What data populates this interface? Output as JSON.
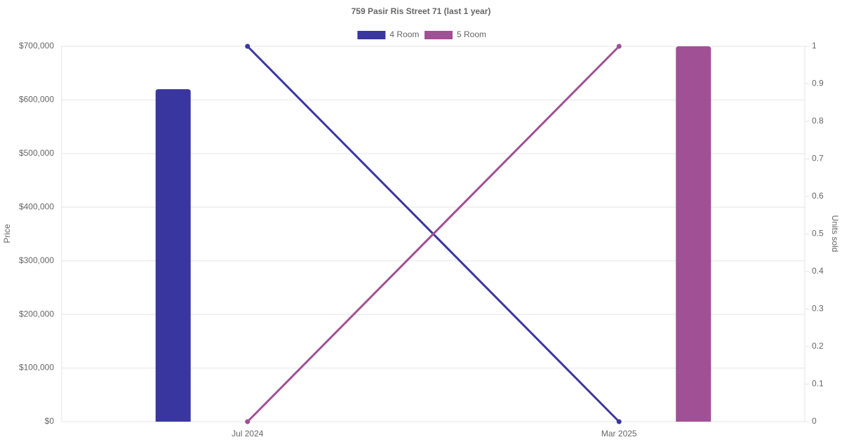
{
  "chart_data": {
    "type": "bar-line",
    "title": "759 Pasir Ris Street 71 (last 1 year)",
    "categories": [
      "Jul 2024",
      "Mar 2025"
    ],
    "y_label": "Price",
    "y2_label": "Units sold",
    "series": [
      {
        "name": "4 Room",
        "color": "#3a36a0",
        "values": [
          620000,
          null
        ],
        "units": [
          1,
          0
        ]
      },
      {
        "name": "5 Room",
        "color": "#a05095",
        "values": [
          null,
          700000
        ],
        "units": [
          0,
          1
        ]
      }
    ],
    "ylim": [
      0,
      700000
    ],
    "yticks": [
      {
        "value": 0,
        "label": "$0"
      },
      {
        "value": 100000,
        "label": "$100,000"
      },
      {
        "value": 200000,
        "label": "$200,000"
      },
      {
        "value": 300000,
        "label": "$300,000"
      },
      {
        "value": 400000,
        "label": "$400,000"
      },
      {
        "value": 500000,
        "label": "$500,000"
      },
      {
        "value": 600000,
        "label": "$600,000"
      },
      {
        "value": 700000,
        "label": "$700,000"
      }
    ],
    "y2lim": [
      0,
      1
    ],
    "y2ticks": [
      0,
      0.1,
      0.2,
      0.3,
      0.4,
      0.5,
      0.6,
      0.7,
      0.8,
      0.9,
      1
    ],
    "grid": true
  }
}
